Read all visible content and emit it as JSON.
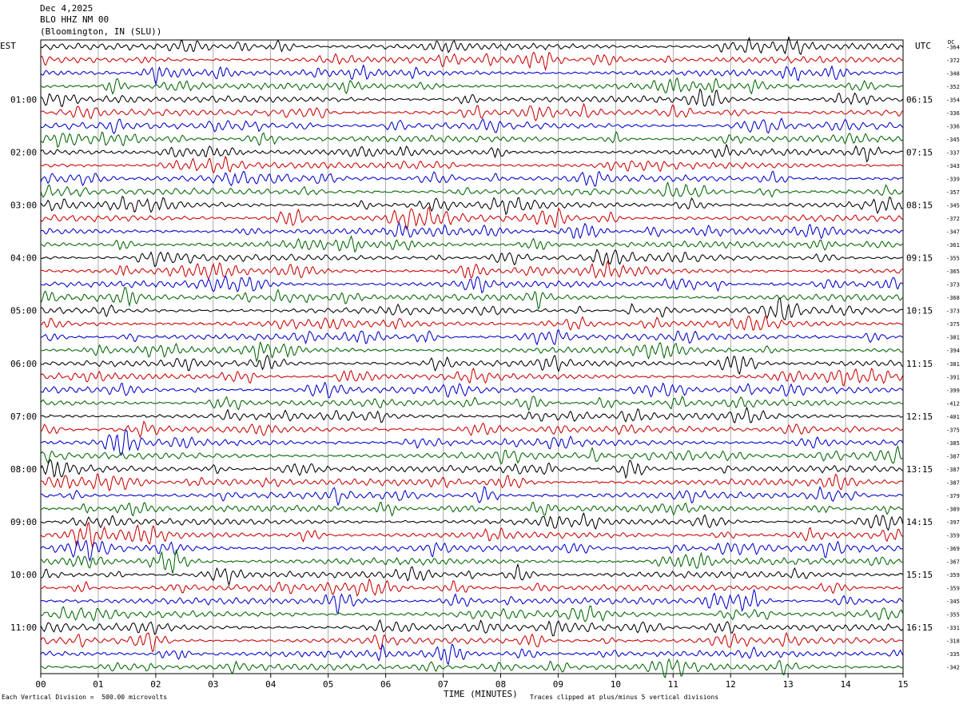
{
  "header": {
    "date": "Dec 4,2025",
    "station": "BLO HHZ NM 00",
    "location": "(Bloomington, IN (SLU))"
  },
  "labels": {
    "left_zone": "EST",
    "right_zone": "UTC",
    "dc": "DC",
    "xlabel": "TIME (MINUTES)"
  },
  "footer": {
    "scale_note": "Each Vertical Division =  500.00 microvolts",
    "clip_note": "Traces clipped at plus/minus 5 vertical divisions"
  },
  "colors": {
    "trace_cycle": [
      "#000000",
      "#cc0000",
      "#0000cc",
      "#006600"
    ],
    "grid": "#777777",
    "background": "#ffffff"
  },
  "chart_data": {
    "type": "line",
    "title": "BLO HHZ NM 00",
    "xlabel": "TIME (MINUTES)",
    "xlim": [
      0,
      15
    ],
    "x_ticks": [
      "00",
      "01",
      "02",
      "03",
      "04",
      "05",
      "06",
      "07",
      "08",
      "09",
      "10",
      "11",
      "12",
      "13",
      "14",
      "15"
    ],
    "left_hour_labels": [
      "01:00",
      "02:00",
      "03:00",
      "04:00",
      "05:00",
      "06:00",
      "07:00",
      "08:00",
      "09:00",
      "10:00",
      "11:00"
    ],
    "right_hour_labels": [
      "06:15",
      "07:15",
      "08:15",
      "09:15",
      "10:15",
      "11:15",
      "12:15",
      "13:15",
      "14:15",
      "15:15",
      "16:15"
    ],
    "trace_count": 48,
    "dc_offsets": [
      -364,
      -372,
      -348,
      -352,
      -354,
      -336,
      -336,
      -345,
      -337,
      -343,
      -339,
      -357,
      -345,
      -372,
      -347,
      -361,
      -355,
      -365,
      -373,
      -368,
      -373,
      -375,
      -381,
      -394,
      -381,
      -391,
      -399,
      -412,
      -401,
      -375,
      -385,
      -387,
      -387,
      -387,
      -379,
      -389,
      -397,
      -359,
      -369,
      -367,
      -359,
      -359,
      -345,
      -355,
      -331,
      -318,
      -335,
      -342
    ]
  }
}
